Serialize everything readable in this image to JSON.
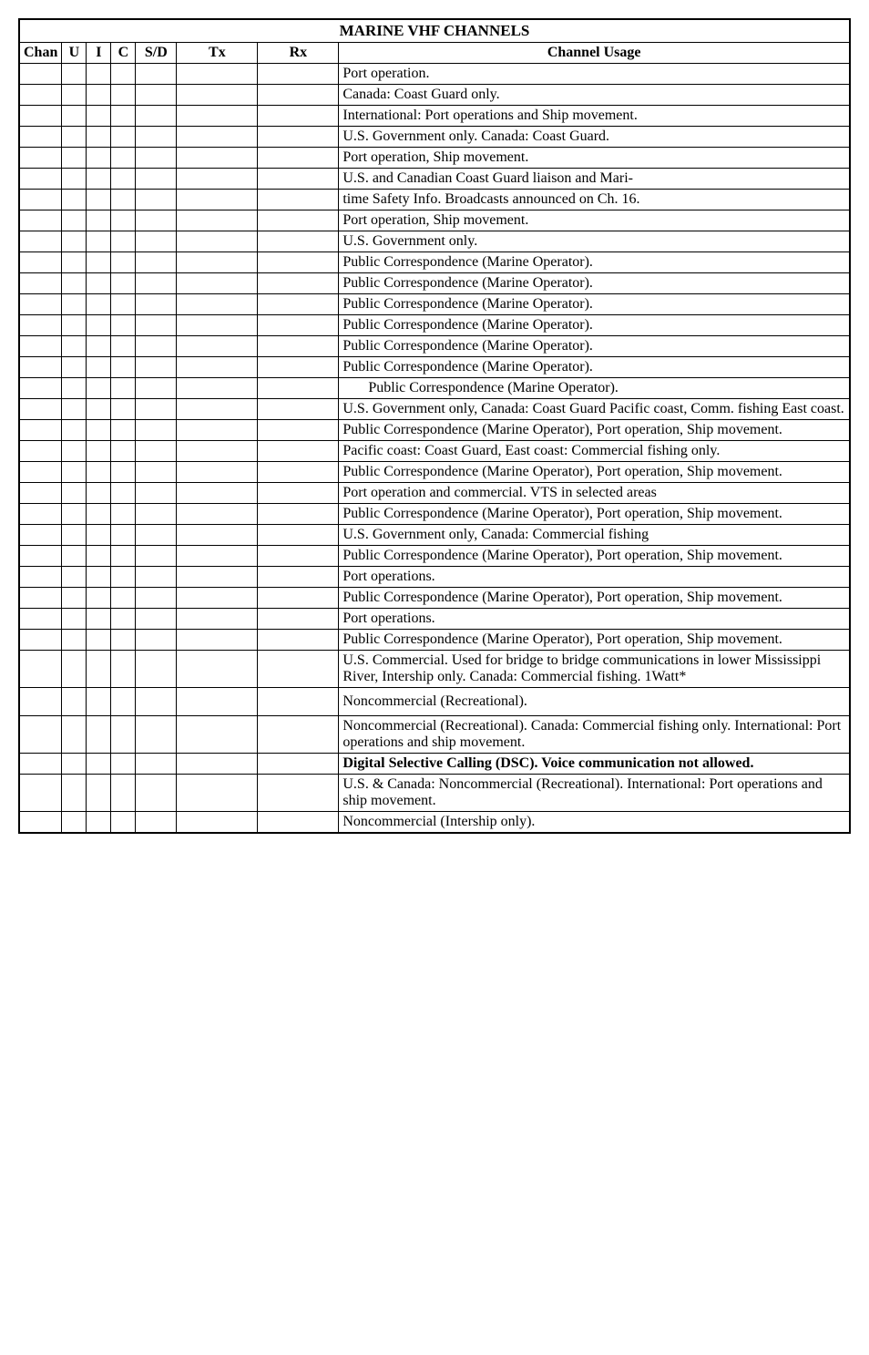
{
  "title": "MARINE VHF CHANNELS",
  "headers": {
    "chan": "Chan",
    "u": "U",
    "i": "I",
    "c": "C",
    "sd": "S/D",
    "tx": "Tx",
    "rx": "Rx",
    "usage": "Channel Usage"
  },
  "rows": [
    {
      "usage": "Port operation."
    },
    {
      "usage": "Canada: Coast Guard only."
    },
    {
      "usage": "International: Port operations and Ship movement."
    },
    {
      "usage": "U.S.  Government only.  Canada:  Coast Guard."
    },
    {
      "usage": "Port operation, Ship movement."
    },
    {
      "usage": "U.S. and Canadian Coast Guard liaison and Mari-"
    },
    {
      "usage": "time Safety Info. Broadcasts announced on Ch. 16."
    },
    {
      "usage": "Port operation, Ship movement."
    },
    {
      "usage": "U.S. Government only."
    },
    {
      "usage": "Public Correspondence (Marine Operator)."
    },
    {
      "usage": "Public Correspondence (Marine Operator)."
    },
    {
      "usage": "Public Correspondence (Marine Operator)."
    },
    {
      "usage": "Public Correspondence (Marine Operator)."
    },
    {
      "usage": "Public Correspondence (Marine Operator)."
    },
    {
      "usage": "Public Correspondence (Marine Operator)."
    },
    {
      "usage": "Public Correspondence (Marine Operator).",
      "indent": true
    },
    {
      "usage": "U.S. Government only, Canada: Coast Guard Pacific coast, Comm. fishing East coast."
    },
    {
      "usage": "Public Correspondence (Marine Operator), Port operation, Ship movement."
    },
    {
      "usage": "Pacific coast: Coast Guard, East coast: Commercial fishing only."
    },
    {
      "usage": "Public Correspondence (Marine Operator), Port operation, Ship movement."
    },
    {
      "usage": "Port operation and commercial. VTS in selected areas"
    },
    {
      "usage": "Public Correspondence (Marine Operator), Port operation, Ship movement."
    },
    {
      "usage": "U.S. Government only, Canada: Commercial fishing"
    },
    {
      "usage": "Public Correspondence (Marine Operator), Port operation, Ship movement."
    },
    {
      "usage": "Port operations."
    },
    {
      "usage": "Public Correspondence (Marine Operator), Port operation, Ship movement."
    },
    {
      "usage": "Port operations."
    },
    {
      "usage": "Public Correspondence (Marine Operator), Port operation, Ship movement."
    },
    {
      "usage": "U.S. Commercial. Used for bridge to bridge communications in lower Mississippi River, Intership only. Canada: Commercial fishing. 1Watt*"
    },
    {
      "usage": "Noncommercial (Recreational).",
      "tall": true
    },
    {
      "usage": "Noncommercial (Recreational). Canada: Commercial fishing only. International: Port operations and ship movement."
    },
    {
      "usage": "Digital Selective Calling (DSC).  Voice communication not allowed.",
      "bold": true
    },
    {
      "usage": "U.S. & Canada: Noncommercial (Recreational). International: Port operations and ship movement."
    },
    {
      "usage": "Noncommercial (Intership only)."
    }
  ]
}
